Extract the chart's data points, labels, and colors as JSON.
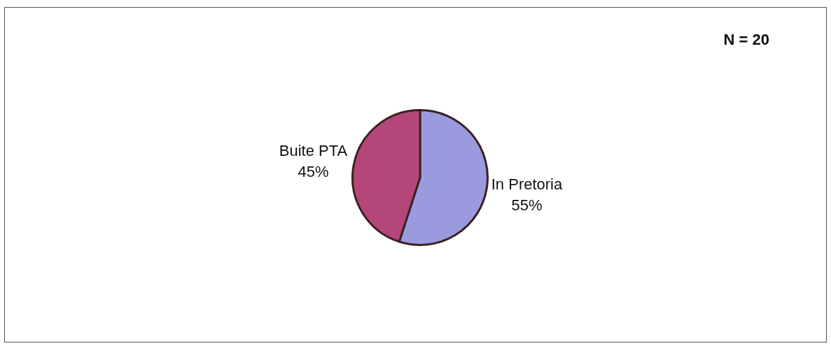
{
  "chart_data": {
    "type": "pie",
    "categories": [
      "In Pretoria",
      "Buite PTA"
    ],
    "values": [
      55,
      45
    ],
    "colors": [
      "#9a9ade",
      "#b5467a"
    ],
    "value_labels": [
      "55%",
      "45%"
    ],
    "annotations": [
      "N = 20"
    ]
  }
}
